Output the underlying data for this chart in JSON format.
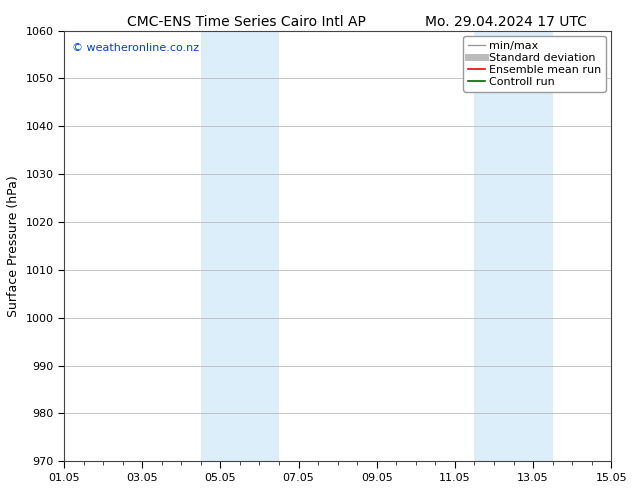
{
  "title_left": "CMC-ENS Time Series Cairo Intl AP",
  "title_right": "Mo. 29.04.2024 17 UTC",
  "ylabel": "Surface Pressure (hPa)",
  "ylim": [
    970,
    1060
  ],
  "yticks": [
    970,
    980,
    990,
    1000,
    1010,
    1020,
    1030,
    1040,
    1050,
    1060
  ],
  "xtick_labels": [
    "01.05",
    "03.05",
    "05.05",
    "07.05",
    "09.05",
    "11.05",
    "13.05",
    "15.05"
  ],
  "xtick_positions": [
    0,
    2,
    4,
    6,
    8,
    10,
    12,
    14
  ],
  "xlim": [
    0,
    14
  ],
  "shaded_bands": [
    {
      "x_start": 3.5,
      "x_end": 5.5
    },
    {
      "x_start": 10.5,
      "x_end": 12.5
    }
  ],
  "shaded_color": "#dceef9",
  "watermark_text": "© weatheronline.co.nz",
  "watermark_color": "#0044cc",
  "legend_entries": [
    {
      "label": "min/max",
      "color": "#999999",
      "lw": 1.0
    },
    {
      "label": "Standard deviation",
      "color": "#bbbbbb",
      "lw": 5
    },
    {
      "label": "Ensemble mean run",
      "color": "#ff0000",
      "lw": 1.2
    },
    {
      "label": "Controll run",
      "color": "#006600",
      "lw": 1.2
    }
  ],
  "bg_color": "#ffffff",
  "grid_color": "#bbbbbb",
  "title_fontsize": 10,
  "tick_fontsize": 8,
  "ylabel_fontsize": 9,
  "watermark_fontsize": 8,
  "legend_fontsize": 8
}
